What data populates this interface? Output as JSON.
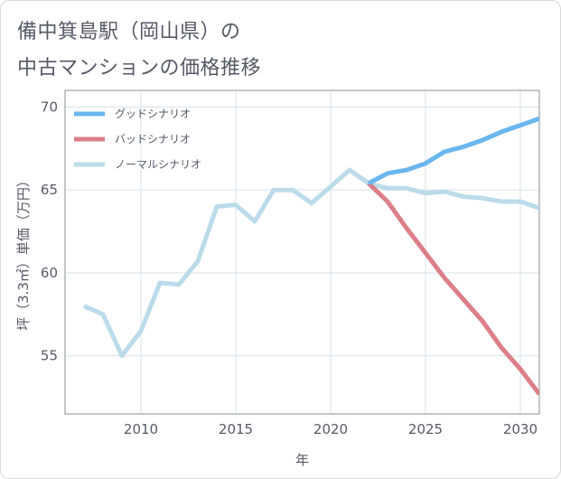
{
  "page_title": {
    "line1": "備中箕島駅（岡山県）の",
    "line2": "中古マンションの価格推移"
  },
  "colors": {
    "good": "#6ab6ee",
    "bad": "#dc7f88",
    "normal": "#bcdbea",
    "grid": "#d6e3ea",
    "text": "#555a66"
  },
  "chart_data": {
    "type": "line",
    "xlabel": "年",
    "ylabel": "坪（3.3㎡）単価（万円）",
    "xlim": [
      2006,
      2031
    ],
    "ylim": [
      51.5,
      71
    ],
    "x_ticks": [
      2010,
      2015,
      2020,
      2025,
      2030
    ],
    "y_ticks": [
      55,
      60,
      65,
      70
    ],
    "grid": true,
    "legend_position": "top-left",
    "series": [
      {
        "name": "グッドシナリオ",
        "color": "#6ab6ee",
        "points": [
          [
            2022,
            65.4
          ],
          [
            2023,
            66.0
          ],
          [
            2024,
            66.2
          ],
          [
            2025,
            66.6
          ],
          [
            2026,
            67.3
          ],
          [
            2027,
            67.6
          ],
          [
            2028,
            68.0
          ],
          [
            2029,
            68.5
          ],
          [
            2030,
            68.9
          ],
          [
            2031,
            69.3
          ]
        ]
      },
      {
        "name": "バッドシナリオ",
        "color": "#dc7f88",
        "points": [
          [
            2022,
            65.4
          ],
          [
            2023,
            64.3
          ],
          [
            2024,
            62.7
          ],
          [
            2025,
            61.2
          ],
          [
            2026,
            59.7
          ],
          [
            2027,
            58.4
          ],
          [
            2028,
            57.1
          ],
          [
            2029,
            55.5
          ],
          [
            2030,
            54.2
          ],
          [
            2031,
            52.7
          ]
        ]
      },
      {
        "name": "ノーマルシナリオ",
        "color": "#bcdbea",
        "points": [
          [
            2007,
            58.0
          ],
          [
            2008,
            57.5
          ],
          [
            2009,
            55.0
          ],
          [
            2010,
            56.5
          ],
          [
            2011,
            59.4
          ],
          [
            2012,
            59.3
          ],
          [
            2013,
            60.7
          ],
          [
            2014,
            64.0
          ],
          [
            2015,
            64.1
          ],
          [
            2016,
            63.1
          ],
          [
            2017,
            65.0
          ],
          [
            2018,
            65.0
          ],
          [
            2019,
            64.2
          ],
          [
            2020,
            65.2
          ],
          [
            2021,
            66.2
          ],
          [
            2022,
            65.4
          ],
          [
            2023,
            65.1
          ],
          [
            2024,
            65.1
          ],
          [
            2025,
            64.8
          ],
          [
            2026,
            64.9
          ],
          [
            2027,
            64.6
          ],
          [
            2028,
            64.5
          ],
          [
            2029,
            64.3
          ],
          [
            2030,
            64.3
          ],
          [
            2031,
            63.9
          ]
        ]
      }
    ]
  }
}
